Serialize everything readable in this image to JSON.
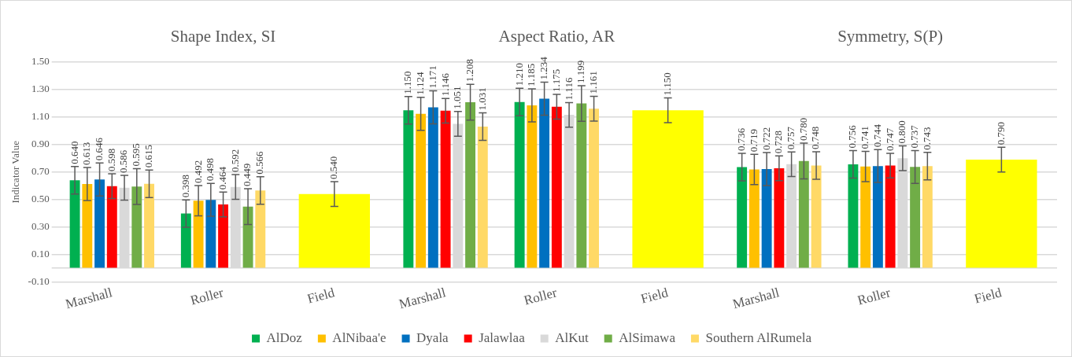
{
  "chart_data": {
    "type": "bar",
    "ylabel": "Indicator Value",
    "categories": [
      "Marshall",
      "Roller",
      "Field",
      "Marshall",
      "Roller",
      "Field",
      "Marshall",
      "Roller",
      "Field"
    ],
    "annotations": [
      "Shape Index, SI",
      "Aspect Ratio, AR",
      "Symmetry, S(P)"
    ],
    "series": [
      {
        "name": "AlDoz",
        "color": "#00b050",
        "values": [
          0.64,
          0.398,
          null,
          1.15,
          1.21,
          null,
          0.736,
          0.756,
          null
        ],
        "errors": [
          0.1,
          0.1,
          null,
          0.1,
          0.1,
          null,
          0.1,
          0.1,
          null
        ],
        "value_labels": [
          "0.640",
          "0.398",
          null,
          "1.150",
          "1.210",
          null,
          "0.736",
          "0.756",
          null
        ]
      },
      {
        "name": "AlNibaa'e",
        "color": "#ffc000",
        "values": [
          0.613,
          0.492,
          null,
          1.124,
          1.185,
          null,
          0.719,
          0.741,
          null
        ],
        "errors": [
          0.12,
          0.11,
          null,
          0.12,
          0.12,
          null,
          0.11,
          0.11,
          null
        ],
        "value_labels": [
          "0.613",
          "0.492",
          null,
          "1.124",
          "1.185",
          null,
          "0.719",
          "0.741",
          null
        ]
      },
      {
        "name": "Dyala",
        "color": "#0070c0",
        "values": [
          0.646,
          0.498,
          null,
          1.171,
          1.234,
          null,
          0.722,
          0.744,
          null
        ],
        "errors": [
          0.12,
          0.12,
          null,
          0.12,
          0.12,
          null,
          0.12,
          0.12,
          null
        ],
        "value_labels": [
          "0.646",
          "0.498",
          null,
          "1.171",
          "1.234",
          null,
          "0.722",
          "0.744",
          null
        ]
      },
      {
        "name": "Jalawlaa",
        "color": "#ff0000",
        "values": [
          0.598,
          0.464,
          null,
          1.146,
          1.175,
          null,
          0.728,
          0.747,
          null
        ],
        "errors": [
          0.09,
          0.09,
          null,
          0.09,
          0.09,
          null,
          0.09,
          0.09,
          null
        ],
        "value_labels": [
          "0.598",
          "0.464",
          null,
          "1.146",
          "1.175",
          null,
          "0.728",
          "0.747",
          null
        ]
      },
      {
        "name": "AlKut",
        "color": "#d9d9d9",
        "values": [
          0.586,
          0.592,
          null,
          1.051,
          1.116,
          null,
          0.757,
          0.8,
          null
        ],
        "errors": [
          0.09,
          0.09,
          null,
          0.09,
          0.09,
          null,
          0.09,
          0.09,
          null
        ],
        "value_labels": [
          "0.586",
          "0.592",
          null,
          "1.051",
          "1.116",
          null,
          "0.757",
          "0.800",
          null
        ]
      },
      {
        "name": "AlSimawa",
        "color": "#70ad47",
        "values": [
          0.595,
          0.449,
          null,
          1.208,
          1.199,
          null,
          0.78,
          0.737,
          null
        ],
        "errors": [
          0.13,
          0.13,
          null,
          0.13,
          0.13,
          null,
          0.13,
          0.12,
          null
        ],
        "value_labels": [
          "0.595",
          "0.449",
          null,
          "1.208",
          "1.199",
          null,
          "0.780",
          "0.737",
          null
        ]
      },
      {
        "name": "Southern AlRumela",
        "color": "#ffd966",
        "values": [
          0.615,
          0.566,
          null,
          1.031,
          1.161,
          null,
          0.748,
          0.743,
          null
        ],
        "errors": [
          0.1,
          0.1,
          null,
          0.1,
          0.09,
          null,
          0.1,
          0.1,
          null
        ],
        "value_labels": [
          "0.615",
          "0.566",
          null,
          "1.031",
          "1.161",
          null,
          "0.748",
          "0.743",
          null
        ]
      },
      {
        "color": "#ffff00",
        "values": [
          null,
          null,
          0.54,
          null,
          null,
          1.15,
          null,
          null,
          0.79
        ],
        "errors": [
          null,
          null,
          0.09,
          null,
          null,
          0.09,
          null,
          null,
          0.09
        ],
        "value_labels": [
          null,
          null,
          "0.540",
          null,
          null,
          "1.150",
          null,
          null,
          "0.790"
        ]
      }
    ],
    "ylim": [
      -0.1,
      1.5
    ],
    "yticks": [
      {
        "value": -0.1,
        "label": "-0.10"
      },
      {
        "value": 0,
        "label": null
      },
      {
        "value": 0.1,
        "label": "0.10"
      },
      {
        "value": 0.3,
        "label": "0.30"
      },
      {
        "value": 0.5,
        "label": "0.50"
      },
      {
        "value": 0.7,
        "label": "0.70"
      },
      {
        "value": 0.9,
        "label": "0.90"
      },
      {
        "value": 1.1,
        "label": "1.10"
      },
      {
        "value": 1.3,
        "label": "1.30"
      },
      {
        "value": 1.5,
        "label": "1.50"
      }
    ],
    "grid": "y",
    "legend": "bottom"
  }
}
